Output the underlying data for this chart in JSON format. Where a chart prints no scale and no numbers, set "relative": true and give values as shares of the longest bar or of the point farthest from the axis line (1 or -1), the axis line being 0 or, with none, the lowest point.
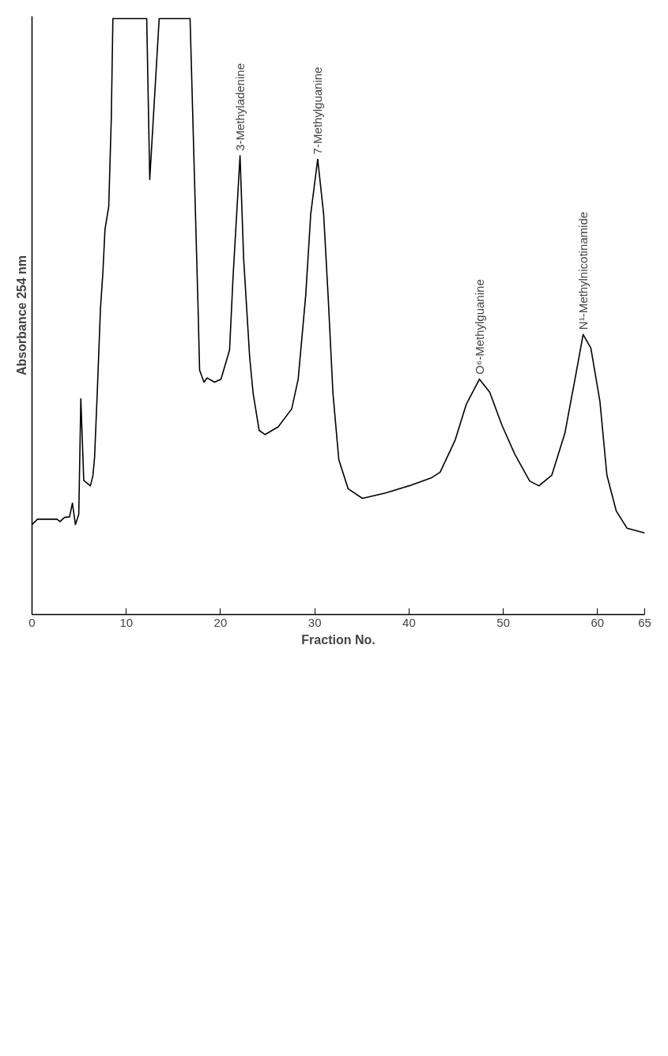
{
  "chart_data": {
    "type": "line",
    "relative": true,
    "xlabel": "Fraction No.",
    "ylabel": "Absorbance 254 nm",
    "xlim": [
      0,
      65
    ],
    "xticks": [
      0,
      10,
      20,
      30,
      40,
      50,
      60,
      65
    ],
    "x": [
      0,
      0.58,
      2.65,
      2.96,
      3.45,
      3.98,
      4.29,
      4.6,
      4.96,
      5.18,
      5.49,
      6.19,
      6.46,
      6.64,
      6.95,
      7.26,
      7.52,
      7.74,
      8.14,
      8.41,
      8.58,
      12.17,
      12.49,
      13.49,
      16.77,
      17.62,
      17.78,
      18.25,
      18.57,
      19.37,
      20.05,
      20.96,
      21.33,
      22.07,
      22.45,
      23.09,
      23.46,
      24.1,
      24.73,
      26.12,
      27.55,
      28.24,
      29.04,
      29.57,
      30.31,
      30.94,
      31.41,
      31.93,
      32.55,
      33.54,
      35.05,
      37.5,
      40,
      42.32,
      43.3,
      44.9,
      46.08,
      47.47,
      48.56,
      49.85,
      51.22,
      52.8,
      53.78,
      55.15,
      56.53,
      57.7,
      58.47,
      59.29,
      60.25,
      60.99,
      61.98,
      63.12,
      65
    ],
    "series": [
      {
        "color": "#000000",
        "values": [
          0.151,
          0.16,
          0.16,
          0.156,
          0.163,
          0.164,
          0.187,
          0.151,
          0.168,
          0.362,
          0.225,
          0.216,
          0.233,
          0.264,
          0.384,
          0.513,
          0.574,
          0.646,
          0.685,
          0.832,
          1.0,
          1.0,
          0.73,
          1.0,
          1.0,
          0.513,
          0.41,
          0.39,
          0.397,
          0.39,
          0.395,
          0.444,
          0.567,
          0.77,
          0.598,
          0.432,
          0.371,
          0.309,
          0.302,
          0.315,
          0.345,
          0.395,
          0.536,
          0.672,
          0.764,
          0.672,
          0.536,
          0.371,
          0.26,
          0.211,
          0.195,
          0.204,
          0.216,
          0.229,
          0.239,
          0.293,
          0.353,
          0.395,
          0.373,
          0.318,
          0.269,
          0.224,
          0.216,
          0.234,
          0.304,
          0.403,
          0.47,
          0.447,
          0.358,
          0.234,
          0.174,
          0.145,
          0.137
        ]
      }
    ],
    "annotations": [
      {
        "text": "3-Methyladenine",
        "x": 22.07,
        "y": 0.77
      },
      {
        "text": "7-Methylguanine",
        "x": 30.31,
        "y": 0.764
      },
      {
        "text": "O⁶-Methylguanine",
        "x": 47.47,
        "y": 0.395
      },
      {
        "text": "N¹-Methylnicotinamide",
        "x": 58.47,
        "y": 0.47
      }
    ],
    "grid": false
  }
}
